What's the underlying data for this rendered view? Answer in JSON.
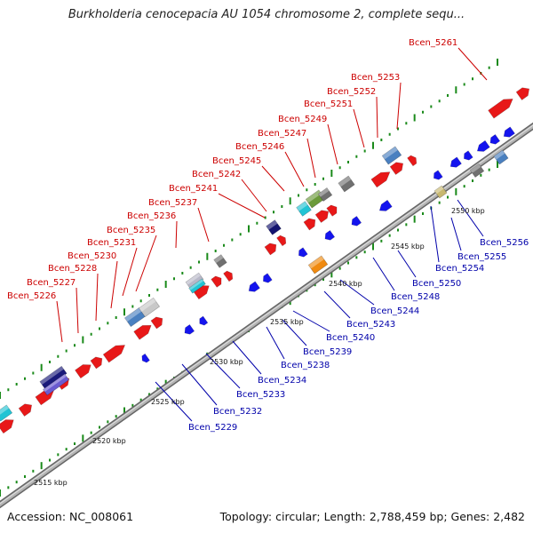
{
  "header": {
    "title": "Burkholderia cenocepacia AU 1054 chromosome 2, complete sequ..."
  },
  "footer": {
    "accession": "Accession: NC_008061",
    "summary": "Topology: circular; Length: 2,788,459 bp; Genes: 2,482"
  },
  "colors": {
    "backbone": "#8a8a8a",
    "forward_gene": "#e81818",
    "reverse_gene": "#1414ee",
    "forward_label": "#cc0000",
    "reverse_label": "#0000aa",
    "tick": "#1a8a1a"
  },
  "scale_labels": [
    {
      "text": "2515 kbp",
      "kbp": 2515
    },
    {
      "text": "2520 kbp",
      "kbp": 2520
    },
    {
      "text": "2525 kbp",
      "kbp": 2525
    },
    {
      "text": "2530 kbp",
      "kbp": 2530
    },
    {
      "text": "2535 kbp",
      "kbp": 2535
    },
    {
      "text": "2540 kbp",
      "kbp": 2540
    },
    {
      "text": "2545 kbp",
      "kbp": 2545
    },
    {
      "text": "2550 kbp",
      "kbp": 2550
    }
  ],
  "forward_labels": [
    "Bcen_5226",
    "Bcen_5227",
    "Bcen_5228",
    "Bcen_5230",
    "Bcen_5231",
    "Bcen_5235",
    "Bcen_5236",
    "Bcen_5237",
    "Bcen_5241",
    "Bcen_5242",
    "Bcen_5245",
    "Bcen_5246",
    "Bcen_5247",
    "Bcen_5249",
    "Bcen_5251",
    "Bcen_5252",
    "Bcen_5253",
    "Bcen_5261"
  ],
  "reverse_labels": [
    "Bcen_5229",
    "Bcen_5232",
    "Bcen_5233",
    "Bcen_5234",
    "Bcen_5238",
    "Bcen_5239",
    "Bcen_5240",
    "Bcen_5243",
    "Bcen_5244",
    "Bcen_5248",
    "Bcen_5250",
    "Bcen_5254",
    "Bcen_5255",
    "Bcen_5256"
  ]
}
